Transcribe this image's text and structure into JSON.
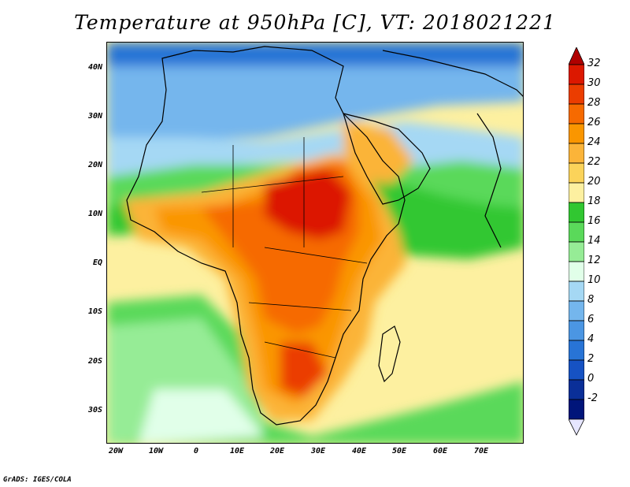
{
  "title": "Temperature at 950hPa [C], VT: 2018021221",
  "credit": "GrADS: IGES/COLA",
  "map": {
    "lat_labels": [
      "40N",
      "30N",
      "20N",
      "10N",
      "EQ",
      "10S",
      "20S",
      "30S"
    ],
    "lon_labels": [
      "20W",
      "10W",
      "0",
      "10E",
      "20E",
      "30E",
      "40E",
      "50E",
      "60E",
      "70E"
    ]
  },
  "colorbar": {
    "labels": [
      "32",
      "30",
      "28",
      "26",
      "24",
      "22",
      "20",
      "18",
      "16",
      "14",
      "12",
      "10",
      "8",
      "6",
      "4",
      "2",
      "0",
      "-2"
    ],
    "colors": [
      "#dc1800",
      "#eb3d00",
      "#f66a00",
      "#fa9600",
      "#fbb439",
      "#fbd35a",
      "#fdf0a0",
      "#31c731",
      "#5ad95a",
      "#96ec96",
      "#e1ffe9",
      "#a5d8f4",
      "#74b6ed",
      "#4b96e3",
      "#2874d6",
      "#1652c3",
      "#0a2f98",
      "#00157a"
    ]
  }
}
